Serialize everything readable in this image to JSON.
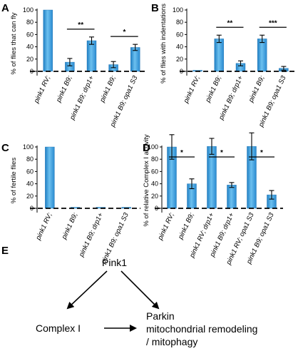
{
  "panels": [
    {
      "letter": "A"
    },
    {
      "letter": "B"
    },
    {
      "letter": "C"
    },
    {
      "letter": "D"
    },
    {
      "letter": "E"
    }
  ],
  "chart_data": [
    {
      "panel": "A",
      "type": "bar",
      "ylabel": "% of flies that can fly",
      "ylim": [
        0,
        100
      ],
      "yticks": [
        0,
        20,
        40,
        60,
        80,
        100
      ],
      "categories": [
        "pink1 RV;",
        "pink1 B9;",
        "pink1 B9; drp1+",
        "pink1 B9;",
        "pink1 B9; opa1 S3"
      ],
      "values": [
        100,
        15,
        50,
        11,
        39
      ],
      "errors": [
        0,
        6,
        6,
        5,
        5
      ],
      "color": "#3d9ad6",
      "baseline_dashed": true,
      "significance": [
        {
          "from": 1,
          "to": 2,
          "label": "**"
        },
        {
          "from": 3,
          "to": 4,
          "label": "*"
        }
      ]
    },
    {
      "panel": "B",
      "type": "bar",
      "ylabel": "% of flies with indentations",
      "ylim": [
        0,
        100
      ],
      "yticks": [
        0,
        20,
        40,
        60,
        80,
        100
      ],
      "categories": [
        "pink1 RV;",
        "pink1 B9;",
        "pink1 B9; drp1+",
        "pink1 B9;",
        "pink1 B9; opa1 S3"
      ],
      "values": [
        0,
        53,
        13,
        53,
        5
      ],
      "errors": [
        0,
        6,
        4,
        6,
        3
      ],
      "color": "#3d9ad6",
      "baseline_dashed": true,
      "significance": [
        {
          "from": 1,
          "to": 2,
          "label": "**"
        },
        {
          "from": 3,
          "to": 4,
          "label": "***"
        }
      ]
    },
    {
      "panel": "C",
      "type": "bar",
      "ylabel": "% of fertile flies",
      "ylim": [
        0,
        100
      ],
      "yticks": [
        0,
        20,
        40,
        60,
        80,
        100
      ],
      "categories": [
        "pink1 RV;",
        "pink1 B9;",
        "pink1 B9; drp1+",
        "pink1 B9; opa1 S3"
      ],
      "values": [
        100,
        0,
        0,
        0
      ],
      "errors": [
        0,
        0,
        0,
        0
      ],
      "color": "#3d9ad6",
      "baseline_dashed": true,
      "significance": []
    },
    {
      "panel": "D",
      "type": "bar",
      "ylabel": "% of relative Complex I activity",
      "ylim": [
        0,
        120
      ],
      "yticks": [
        0,
        20,
        40,
        60,
        80,
        100
      ],
      "categories": [
        "pink1 RV;",
        "pink1 B9;",
        "pink1 RV; drp1+",
        "pink1 B9; drp1+",
        "pink1 RV; opa1 S3",
        "pink1 B9; opa1 S3"
      ],
      "values": [
        100,
        40,
        101,
        38,
        101,
        22
      ],
      "errors": [
        20,
        8,
        13,
        4,
        22,
        7
      ],
      "color": "#3d9ad6",
      "baseline_dashed": true,
      "significance": [
        {
          "from": 0,
          "to": 1,
          "label": "*"
        },
        {
          "from": 2,
          "to": 3,
          "label": "*"
        },
        {
          "from": 4,
          "to": 5,
          "label": "*"
        }
      ]
    }
  ],
  "diagram": {
    "top": "Pink1",
    "left": "Complex I",
    "right_lines": [
      "Parkin",
      "mitochondrial remodeling",
      "/ mitophagy"
    ]
  }
}
